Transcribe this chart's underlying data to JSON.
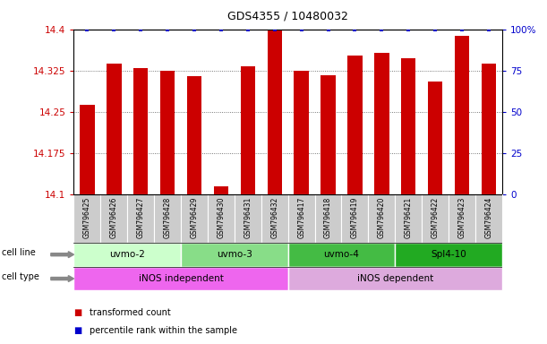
{
  "title": "GDS4355 / 10480032",
  "samples": [
    "GSM796425",
    "GSM796426",
    "GSM796427",
    "GSM796428",
    "GSM796429",
    "GSM796430",
    "GSM796431",
    "GSM796432",
    "GSM796417",
    "GSM796418",
    "GSM796419",
    "GSM796420",
    "GSM796421",
    "GSM796422",
    "GSM796423",
    "GSM796424"
  ],
  "bar_values": [
    14.263,
    14.338,
    14.33,
    14.325,
    14.315,
    14.115,
    14.333,
    14.4,
    14.325,
    14.317,
    14.352,
    14.357,
    14.347,
    14.305,
    14.388,
    14.338
  ],
  "percentile_values": [
    100,
    100,
    100,
    100,
    100,
    100,
    100,
    100,
    100,
    100,
    100,
    100,
    100,
    100,
    100,
    100
  ],
  "bar_color": "#cc0000",
  "percentile_color": "#0000cc",
  "ylim_left": [
    14.1,
    14.4
  ],
  "ylim_right": [
    0,
    100
  ],
  "yticks_left": [
    14.1,
    14.175,
    14.25,
    14.325,
    14.4
  ],
  "yticks_right": [
    0,
    25,
    50,
    75,
    100
  ],
  "ytick_labels_left": [
    "14.1",
    "14.175",
    "14.25",
    "14.325",
    "14.4"
  ],
  "ytick_labels_right": [
    "0",
    "25",
    "50",
    "75",
    "100%"
  ],
  "cell_line_groups": [
    {
      "label": "uvmo-2",
      "start": 0,
      "end": 3,
      "color": "#ccffcc"
    },
    {
      "label": "uvmo-3",
      "start": 4,
      "end": 7,
      "color": "#88dd88"
    },
    {
      "label": "uvmo-4",
      "start": 8,
      "end": 11,
      "color": "#44bb44"
    },
    {
      "label": "Spl4-10",
      "start": 12,
      "end": 15,
      "color": "#22aa22"
    }
  ],
  "cell_type_groups": [
    {
      "label": "iNOS independent",
      "start": 0,
      "end": 7,
      "color": "#ee66ee"
    },
    {
      "label": "iNOS dependent",
      "start": 8,
      "end": 15,
      "color": "#ddaadd"
    }
  ],
  "cell_line_label": "cell line",
  "cell_type_label": "cell type",
  "legend_bar_label": "transformed count",
  "legend_percentile_label": "percentile rank within the sample",
  "sample_box_color": "#cccccc",
  "grid_color": "#555555",
  "arrow_color": "#888888"
}
